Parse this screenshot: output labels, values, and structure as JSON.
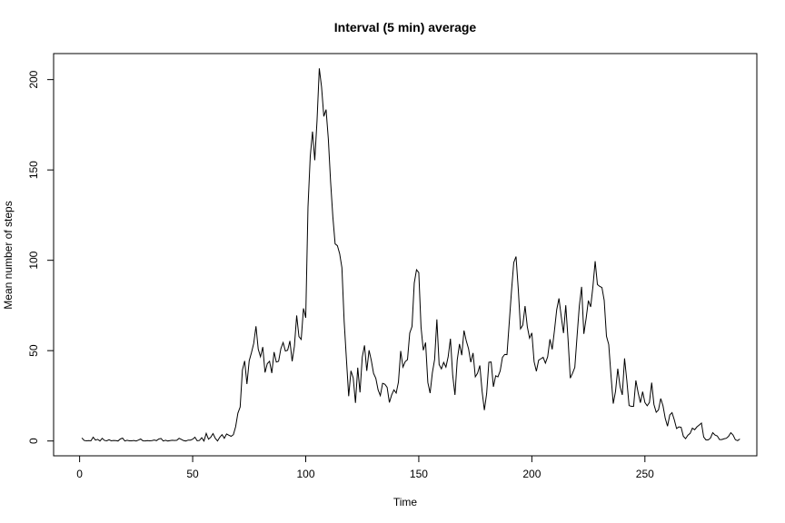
{
  "chart_data": {
    "type": "line",
    "title": "Interval (5 min) average",
    "xlabel": "Time",
    "ylabel": "Mean number of steps",
    "xlim": [
      -11.5,
      299.5
    ],
    "ylim": [
      -8.2,
      214.4
    ],
    "x_ticks": [
      0,
      50,
      100,
      150,
      200,
      250
    ],
    "y_ticks": [
      0,
      50,
      100,
      150,
      200
    ],
    "grid": false,
    "legend": "none",
    "line_color": "#000000",
    "series": [
      {
        "x_start": 1,
        "x_step": 1,
        "values": [
          1.7,
          0.3,
          0.1,
          0.2,
          0.1,
          2.1,
          0.5,
          0.9,
          0,
          1.5,
          0.3,
          0.1,
          0.7,
          0.1,
          0.3,
          0.2,
          0,
          1.1,
          1.6,
          0,
          0.4,
          0.1,
          0.1,
          0.3,
          0,
          0.5,
          1.1,
          0.1,
          0,
          0.2,
          0.1,
          0.2,
          0.5,
          0.2,
          1.1,
          1.4,
          0,
          0.4,
          0,
          0.2,
          0.4,
          0.3,
          0.4,
          1.5,
          0.9,
          0.2,
          0,
          0.5,
          0.5,
          1,
          2.1,
          0.1,
          0.3,
          1.8,
          0,
          4.2,
          1,
          2.1,
          4.1,
          1.5,
          0,
          2.1,
          3.5,
          1.5,
          3.9,
          3.2,
          2.6,
          3.5,
          7.9,
          15.4,
          18.8,
          39.3,
          44.3,
          31.5,
          44.4,
          48.9,
          54,
          63.5,
          50.8,
          46.6,
          52,
          37.9,
          42.8,
          44.1,
          37.6,
          49.2,
          43.7,
          44.1,
          51.1,
          54.5,
          49.8,
          50.2,
          55.4,
          44.1,
          52.5,
          69.5,
          57.8,
          56.2,
          73.4,
          68.2,
          129.4,
          157.5,
          171.2,
          155.4,
          177.3,
          206.2,
          195.9,
          179.6,
          183.4,
          167.1,
          143.5,
          124,
          109.1,
          108.1,
          103.7,
          95.9,
          66.2,
          45.2,
          24.8,
          38.8,
          34.9,
          21.1,
          40.6,
          26.9,
          46.4,
          52.9,
          38.8,
          50.2,
          44.6,
          37.4,
          34.7,
          28.3,
          25.1,
          31.9,
          31.4,
          29.7,
          21.3,
          25.5,
          28.3,
          26.5,
          32.6,
          49.8,
          40.9,
          43.9,
          45,
          59.8,
          63.3,
          87.4,
          94.8,
          93.2,
          62.9,
          50.2,
          54.5,
          32.4,
          26.5,
          37.7,
          45.1,
          67.3,
          42.3,
          39.9,
          43.5,
          40.9,
          46.7,
          56.6,
          36.4,
          25.5,
          44.8,
          53.7,
          47.5,
          61.1,
          55.4,
          51.1,
          43.6,
          48.7,
          35.5,
          37.5,
          41.8,
          27.5,
          17.1,
          26.1,
          43.6,
          43.7,
          30,
          36.1,
          35.5,
          38.8,
          46.3,
          47.9,
          47.8,
          65.4,
          83,
          98.7,
          102.1,
          84,
          62.1,
          64.1,
          74.7,
          63.2,
          56.9,
          59.8,
          43.9,
          38.6,
          44.7,
          45.5,
          46.3,
          43.1,
          46.6,
          56.3,
          50.7,
          61.2,
          72.7,
          78.9,
          68.9,
          59.7,
          75.1,
          56.5,
          34.8,
          37.5,
          40.7,
          58,
          74.7,
          85.3,
          59.3,
          67.8,
          77.7,
          74.2,
          85.3,
          99.5,
          86.6,
          85.6,
          84.9,
          77.8,
          58,
          53.4,
          36.3,
          20.7,
          27.4,
          40,
          30.2,
          25.5,
          45.7,
          33.5,
          19.6,
          19.2,
          19.2,
          33.5,
          26.8,
          21.2,
          27.3,
          21.3,
          19.5,
          21.3,
          32.3,
          20.2,
          15.9,
          17.2,
          23.5,
          19.5,
          12.5,
          8.2,
          14.4,
          15.7,
          11.7,
          6.9,
          7.8,
          7.6,
          2.6,
          1.3,
          3.2,
          4.2,
          7.1,
          6.2,
          7.8,
          8.8,
          9.9,
          2.2,
          0.6,
          0.6,
          1.6,
          4.6,
          3.3,
          2.8,
          0.8,
          0.8,
          1.2,
          1.5,
          2.6,
          4.6,
          3.3,
          0.7,
          0.2,
          1.1
        ]
      }
    ]
  }
}
